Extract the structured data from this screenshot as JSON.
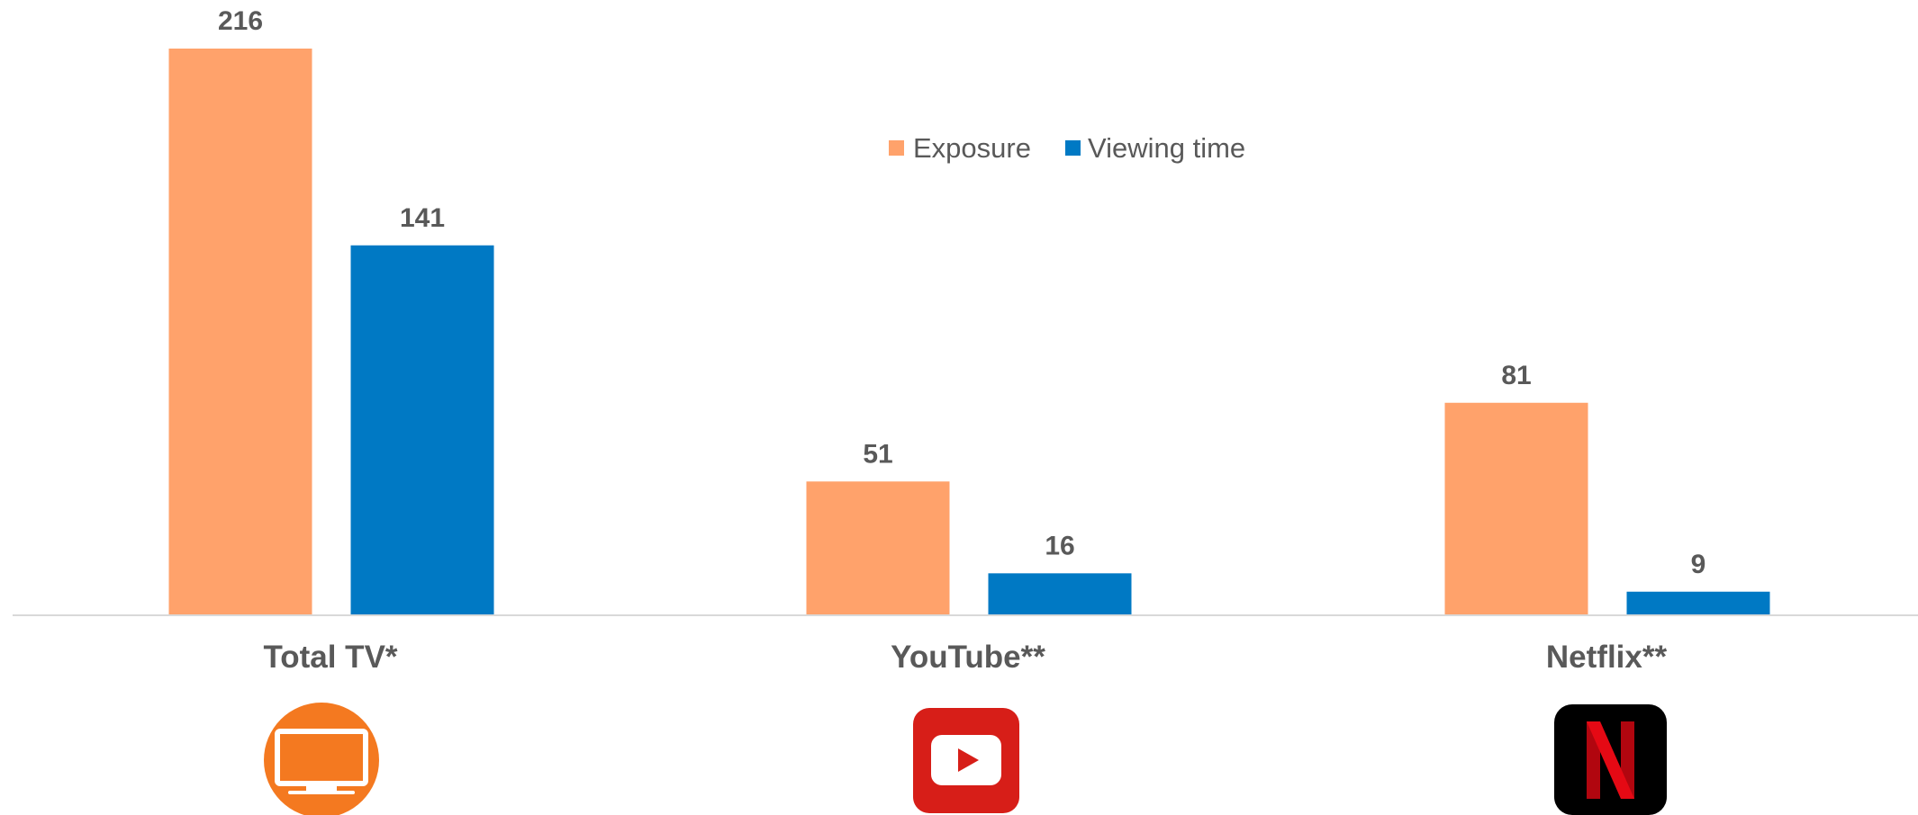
{
  "chart_data": {
    "type": "bar",
    "categories": [
      "Total TV*",
      "YouTube**",
      "Netflix**"
    ],
    "series": [
      {
        "name": "Exposure",
        "values": [
          216,
          51,
          81
        ],
        "color": "#FFA26B"
      },
      {
        "name": "Viewing time",
        "values": [
          141,
          16,
          9
        ],
        "color": "#0079C4"
      }
    ],
    "ylim": [
      0,
      216
    ],
    "grid": false,
    "legend_position": "top-center",
    "title": "",
    "xlabel": "",
    "ylabel": ""
  },
  "icons": [
    "tv-icon",
    "youtube-icon",
    "netflix-icon"
  ],
  "colors": {
    "tv_icon_bg": "#F47920",
    "youtube_icon_bg": "#D71E18",
    "netflix_icon_bg": "#000000",
    "netflix_n": "#E50914",
    "axis_line": "#D9D9D9"
  }
}
